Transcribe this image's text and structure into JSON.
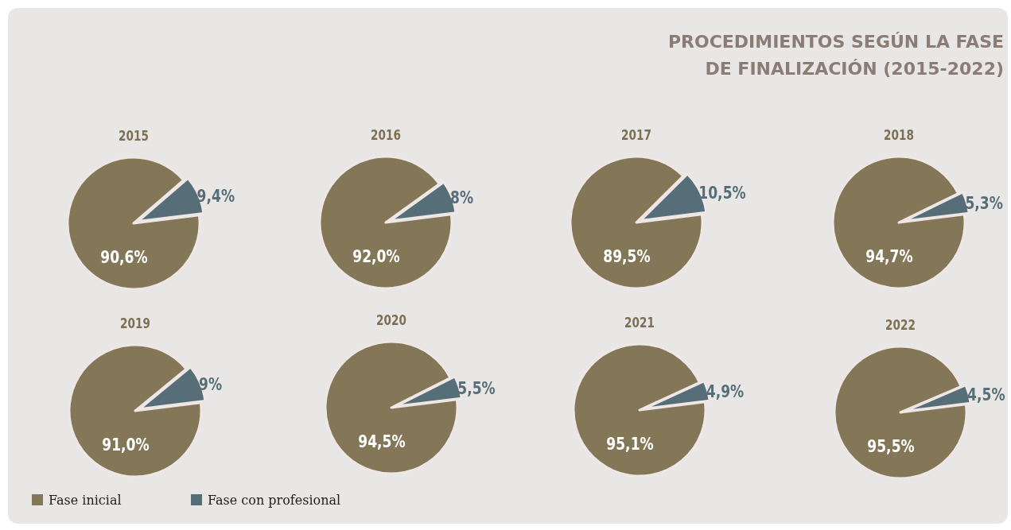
{
  "chart_data": [
    {
      "type": "other",
      "title": "PROCEDIMIENTOS SEGÚN LA FASE\nDE FINALIZACIÓN (2015-2022)"
    },
    {
      "type": "pie",
      "title": "2015",
      "categories": [
        null,
        null
      ],
      "values": [
        90.6,
        9.4
      ],
      "value_labels": [
        "90,6%",
        "9,4%"
      ],
      "colors": [
        "#847757",
        "#566e78"
      ]
    },
    {
      "type": "pie",
      "title": "2016",
      "categories": [
        null,
        null
      ],
      "values": [
        92.0,
        8
      ],
      "value_labels": [
        "92,0%",
        "8%"
      ],
      "colors": [
        "#847757",
        "#566e78"
      ]
    },
    {
      "type": "pie",
      "title": "2017",
      "categories": [
        null,
        null
      ],
      "values": [
        89.5,
        10.5
      ],
      "value_labels": [
        "89,5%",
        "10,5%"
      ],
      "colors": [
        "#847757",
        "#566e78"
      ]
    },
    {
      "type": "pie",
      "title": "2018",
      "categories": [
        null,
        null
      ],
      "values": [
        94.7,
        5.3
      ],
      "value_labels": [
        "94,7%",
        "5,3%"
      ],
      "colors": [
        "#847757",
        "#566e78"
      ]
    },
    {
      "type": "pie",
      "title": "2019",
      "categories": [
        "Fase inicial",
        "Fase con profesional"
      ],
      "values": [
        91.0,
        9
      ],
      "value_labels": [
        "91,0%",
        "9%"
      ],
      "colors": [
        "#847757",
        "#566e78"
      ],
      "legend": "bottom"
    },
    {
      "type": "pie",
      "title": "2020",
      "categories": [
        null,
        null
      ],
      "values": [
        94.5,
        5.5
      ],
      "value_labels": [
        "94,5%",
        "5,5%"
      ],
      "colors": [
        "#847757",
        "#566e78"
      ]
    },
    {
      "type": "pie",
      "title": "2021",
      "categories": [
        null,
        null
      ],
      "values": [
        95.1,
        4.9
      ],
      "value_labels": [
        "95,1%",
        "4,9%"
      ],
      "colors": [
        "#847757",
        "#566e78"
      ]
    },
    {
      "type": "pie",
      "title": "2022",
      "categories": [
        null,
        null
      ],
      "values": [
        95.5,
        4.5
      ],
      "value_labels": [
        "95,5%",
        "4,5%"
      ],
      "colors": [
        "#847757",
        "#566e78"
      ]
    }
  ]
}
